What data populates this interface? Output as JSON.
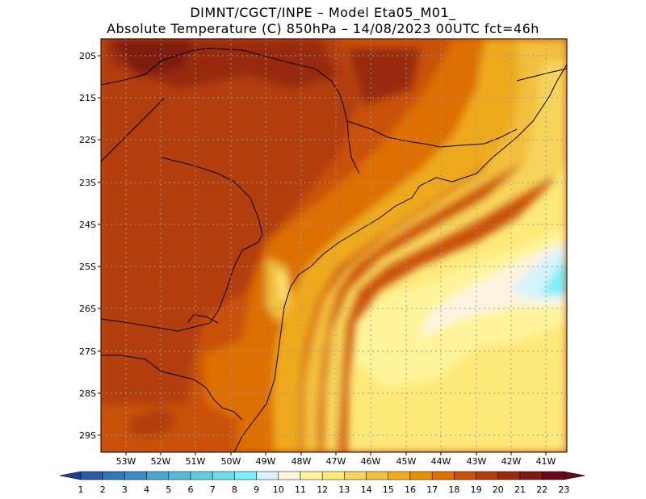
{
  "header": {
    "line1": "DIMNT/CGCT/INPE –  Model Eta05_M01_",
    "line2": "Absolute Temperature (C) 850hPa –  14/08/2023 00UTC fct=46h"
  },
  "map": {
    "lat_labels": [
      "20S",
      "21S",
      "22S",
      "23S",
      "24S",
      "25S",
      "26S",
      "27S",
      "28S",
      "29S"
    ],
    "lon_labels": [
      "53W",
      "52W",
      "51W",
      "50W",
      "49W",
      "48W",
      "47W",
      "46W",
      "45W",
      "44W",
      "43W",
      "42W",
      "41W"
    ]
  },
  "colorbar": {
    "labels": [
      "1",
      "2",
      "3",
      "4",
      "5",
      "6",
      "7",
      "8",
      "9",
      "10",
      "11",
      "12",
      "13",
      "14",
      "15",
      "16",
      "17",
      "18",
      "19",
      "20",
      "21",
      "22",
      "23"
    ],
    "colors": [
      "#1f3f93",
      "#2a5ea6",
      "#2f78b5",
      "#3a8ec3",
      "#48a6cf",
      "#55bad9",
      "#62ccdf",
      "#6fdde9",
      "#7cf0f8",
      "#d4f3fb",
      "#fff4de",
      "#fff49a",
      "#fde978",
      "#f6d45a",
      "#f2c03c",
      "#eeaa1c",
      "#e88f08",
      "#dd6f04",
      "#c9510a",
      "#b23d0c",
      "#972a0c",
      "#7e1a10",
      "#680818"
    ]
  }
}
